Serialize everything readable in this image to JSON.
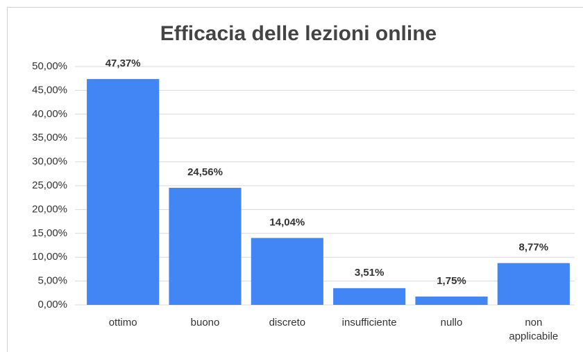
{
  "chart_data": {
    "type": "bar",
    "title": "Efficacia delle lezioni online",
    "categories": [
      "ottimo",
      "buono",
      "discreto",
      "insufficiente",
      "nullo",
      "non applicabile"
    ],
    "values": [
      47.37,
      24.56,
      14.04,
      3.51,
      1.75,
      8.77
    ],
    "value_labels": [
      "47,37%",
      "24,56%",
      "14,04%",
      "3,51%",
      "1,75%",
      "8,77%"
    ],
    "color": "#4285f4",
    "ylim": [
      0,
      50
    ],
    "yticks": [
      {
        "value": 0,
        "label": "0,00%"
      },
      {
        "value": 5,
        "label": "5,00%"
      },
      {
        "value": 10,
        "label": "10,00%"
      },
      {
        "value": 15,
        "label": "15,00%"
      },
      {
        "value": 20,
        "label": "20,00%"
      },
      {
        "value": 25,
        "label": "25,00%"
      },
      {
        "value": 30,
        "label": "30,00%"
      },
      {
        "value": 35,
        "label": "35,00%"
      },
      {
        "value": 40,
        "label": "40,00%"
      },
      {
        "value": 45,
        "label": "45,00%"
      },
      {
        "value": 50,
        "label": "50,00%"
      }
    ],
    "grid": true
  }
}
